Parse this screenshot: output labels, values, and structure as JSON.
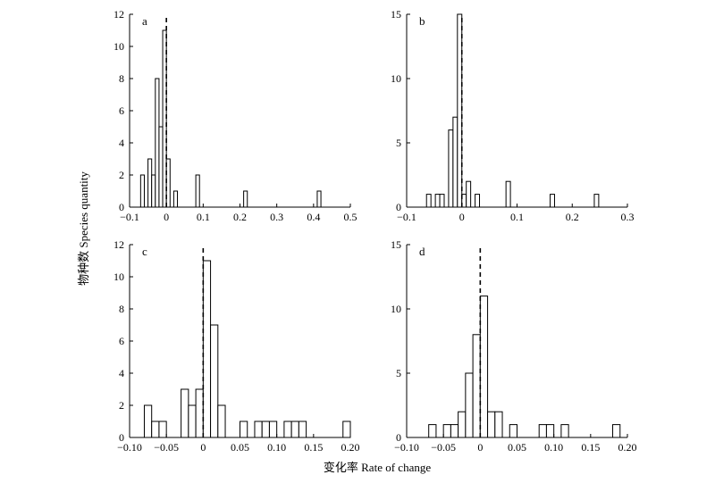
{
  "figure": {
    "ylabel": "物种数 Species quantity",
    "xlabel": "变化率 Rate of change"
  },
  "chart_data": [
    {
      "type": "bar",
      "panel_label": "a",
      "xlim": [
        -0.1,
        0.5
      ],
      "ylim": [
        0,
        12
      ],
      "xticks": [
        -0.1,
        0,
        0.1,
        0.2,
        0.3,
        0.4,
        0.5
      ],
      "xtick_labels": [
        "−0.1",
        "0",
        "0.1",
        "0.2",
        "0.3",
        "0.4",
        "0.5"
      ],
      "yticks": [
        0,
        2,
        4,
        6,
        8,
        10,
        12
      ],
      "ytick_labels": [
        "0",
        "2",
        "4",
        "6",
        "8",
        "10",
        "12"
      ],
      "bin_width": 0.01,
      "reference_line_x": 0,
      "x": [
        -0.07,
        -0.05,
        -0.04,
        -0.03,
        -0.02,
        -0.01,
        0.0,
        0.02,
        0.08,
        0.21,
        0.41
      ],
      "values": [
        2,
        3,
        2,
        8,
        5,
        11,
        3,
        1,
        2,
        1,
        1
      ]
    },
    {
      "type": "bar",
      "panel_label": "b",
      "xlim": [
        -0.1,
        0.3
      ],
      "ylim": [
        0,
        15
      ],
      "xticks": [
        -0.1,
        0,
        0.1,
        0.2,
        0.3
      ],
      "xtick_labels": [
        "−0.1",
        "0",
        "0.1",
        "0.2",
        "0.3"
      ],
      "yticks": [
        0,
        5,
        10,
        15
      ],
      "ytick_labels": [
        "0",
        "5",
        "10",
        "15"
      ],
      "bin_width": 0.008,
      "reference_line_x": 0,
      "x": [
        -0.064,
        -0.048,
        -0.04,
        -0.024,
        -0.016,
        -0.008,
        0.0,
        0.008,
        0.024,
        0.08,
        0.16,
        0.24
      ],
      "values": [
        1,
        1,
        1,
        6,
        7,
        15,
        1,
        2,
        1,
        2,
        1,
        1
      ]
    },
    {
      "type": "bar",
      "panel_label": "c",
      "xlim": [
        -0.1,
        0.2
      ],
      "ylim": [
        0,
        12
      ],
      "xticks": [
        -0.1,
        -0.05,
        0,
        0.05,
        0.1,
        0.15,
        0.2
      ],
      "xtick_labels": [
        "−0.10",
        "−0.05",
        "0",
        "0.05",
        "0.10",
        "0.15",
        "0.20"
      ],
      "yticks": [
        0,
        2,
        4,
        6,
        8,
        10,
        12
      ],
      "ytick_labels": [
        "0",
        "2",
        "4",
        "6",
        "8",
        "10",
        "12"
      ],
      "bin_width": 0.01,
      "reference_line_x": 0,
      "x": [
        -0.08,
        -0.07,
        -0.06,
        -0.03,
        -0.02,
        -0.01,
        0.0,
        0.01,
        0.02,
        0.05,
        0.07,
        0.08,
        0.09,
        0.11,
        0.12,
        0.13,
        0.19
      ],
      "values": [
        2,
        1,
        1,
        3,
        2,
        3,
        11,
        7,
        2,
        1,
        1,
        1,
        1,
        1,
        1,
        1,
        1
      ]
    },
    {
      "type": "bar",
      "panel_label": "d",
      "xlim": [
        -0.1,
        0.2
      ],
      "ylim": [
        0,
        15
      ],
      "xticks": [
        -0.1,
        -0.05,
        0,
        0.05,
        0.1,
        0.15,
        0.2
      ],
      "xtick_labels": [
        "−0.10",
        "−0.05",
        "0",
        "0.05",
        "0.10",
        "0.15",
        "0.20"
      ],
      "yticks": [
        0,
        5,
        10,
        15
      ],
      "ytick_labels": [
        "0",
        "5",
        "10",
        "15"
      ],
      "bin_width": 0.01,
      "reference_line_x": 0,
      "x": [
        -0.07,
        -0.05,
        -0.04,
        -0.03,
        -0.02,
        -0.01,
        0.0,
        0.01,
        0.02,
        0.04,
        0.08,
        0.09,
        0.11,
        0.18
      ],
      "values": [
        1,
        1,
        1,
        2,
        5,
        8,
        11,
        2,
        2,
        1,
        1,
        1,
        1,
        1
      ]
    }
  ]
}
